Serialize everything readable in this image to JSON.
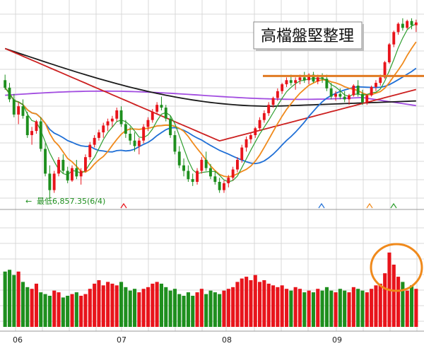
{
  "chart_data": {
    "type": "candlestick",
    "title": "高檔盤堅整理",
    "annotation_low": "最低6,857.35(6/4)",
    "x_ticks": [
      "06",
      "07",
      "08",
      "09"
    ],
    "colors": {
      "up": "#e8141b",
      "down": "#1e8f1e",
      "ma_green": "#2f9e2f",
      "ma_orange": "#f08a1c",
      "ma_blue": "#1f6fd6",
      "ma_red": "#cc2020",
      "ma_black": "#1a1a1a",
      "ma_purple": "#a24de0",
      "resistance": "#e07b23",
      "highlight_circle": "#f08a1c",
      "grid": "#d9d9d9"
    },
    "price_range": [
      6800,
      8200
    ],
    "ohlc": [
      [
        7720,
        7760,
        7650,
        7665
      ],
      [
        7665,
        7700,
        7560,
        7580
      ],
      [
        7580,
        7620,
        7450,
        7470
      ],
      [
        7470,
        7560,
        7400,
        7530
      ],
      [
        7530,
        7580,
        7440,
        7460
      ],
      [
        7460,
        7490,
        7300,
        7320
      ],
      [
        7320,
        7380,
        7250,
        7350
      ],
      [
        7350,
        7430,
        7330,
        7420
      ],
      [
        7420,
        7450,
        7200,
        7220
      ],
      [
        7220,
        7260,
        7020,
        7040
      ],
      [
        7040,
        7100,
        6857,
        6920
      ],
      [
        6920,
        7060,
        6900,
        7040
      ],
      [
        7040,
        7160,
        7020,
        7140
      ],
      [
        7140,
        7180,
        7040,
        7060
      ],
      [
        7060,
        7090,
        6970,
        6990
      ],
      [
        6990,
        7100,
        6980,
        7080
      ],
      [
        7080,
        7140,
        7000,
        7020
      ],
      [
        7020,
        7080,
        6960,
        7060
      ],
      [
        7060,
        7180,
        7050,
        7160
      ],
      [
        7160,
        7270,
        7140,
        7250
      ],
      [
        7250,
        7320,
        7230,
        7300
      ],
      [
        7300,
        7360,
        7280,
        7340
      ],
      [
        7340,
        7410,
        7300,
        7390
      ],
      [
        7390,
        7440,
        7350,
        7420
      ],
      [
        7420,
        7460,
        7380,
        7440
      ],
      [
        7440,
        7520,
        7420,
        7500
      ],
      [
        7500,
        7530,
        7380,
        7400
      ],
      [
        7400,
        7430,
        7300,
        7330
      ],
      [
        7330,
        7380,
        7250,
        7280
      ],
      [
        7280,
        7340,
        7200,
        7240
      ],
      [
        7240,
        7300,
        7180,
        7280
      ],
      [
        7280,
        7400,
        7260,
        7380
      ],
      [
        7380,
        7450,
        7350,
        7430
      ],
      [
        7430,
        7510,
        7410,
        7490
      ],
      [
        7490,
        7560,
        7470,
        7540
      ],
      [
        7540,
        7600,
        7500,
        7520
      ],
      [
        7520,
        7540,
        7420,
        7440
      ],
      [
        7440,
        7460,
        7300,
        7320
      ],
      [
        7320,
        7350,
        7180,
        7200
      ],
      [
        7200,
        7240,
        7080,
        7100
      ],
      [
        7100,
        7150,
        7020,
        7060
      ],
      [
        7060,
        7100,
        6980,
        7000
      ],
      [
        7000,
        7040,
        6950,
        6980
      ],
      [
        6980,
        7080,
        6960,
        7060
      ],
      [
        7060,
        7160,
        7040,
        7140
      ],
      [
        7140,
        7200,
        7060,
        7080
      ],
      [
        7080,
        7110,
        7000,
        7020
      ],
      [
        7020,
        7060,
        6960,
        6980
      ],
      [
        6980,
        7010,
        6900,
        6920
      ],
      [
        6920,
        6990,
        6900,
        6970
      ],
      [
        6970,
        7030,
        6940,
        7010
      ],
      [
        7010,
        7090,
        6990,
        7070
      ],
      [
        7070,
        7160,
        7050,
        7140
      ],
      [
        7140,
        7250,
        7120,
        7230
      ],
      [
        7230,
        7310,
        7200,
        7290
      ],
      [
        7290,
        7340,
        7260,
        7320
      ],
      [
        7320,
        7380,
        7300,
        7370
      ],
      [
        7370,
        7450,
        7350,
        7430
      ],
      [
        7430,
        7500,
        7410,
        7480
      ],
      [
        7480,
        7560,
        7460,
        7540
      ],
      [
        7540,
        7600,
        7520,
        7590
      ],
      [
        7590,
        7660,
        7570,
        7640
      ],
      [
        7640,
        7700,
        7620,
        7690
      ],
      [
        7690,
        7740,
        7670,
        7720
      ],
      [
        7720,
        7760,
        7680,
        7700
      ],
      [
        7700,
        7740,
        7650,
        7720
      ],
      [
        7720,
        7760,
        7690,
        7740
      ],
      [
        7740,
        7780,
        7700,
        7720
      ],
      [
        7720,
        7770,
        7690,
        7760
      ],
      [
        7760,
        7780,
        7700,
        7710
      ],
      [
        7710,
        7760,
        7690,
        7740
      ],
      [
        7740,
        7770,
        7700,
        7730
      ],
      [
        7730,
        7760,
        7640,
        7660
      ],
      [
        7660,
        7700,
        7580,
        7600
      ],
      [
        7600,
        7640,
        7570,
        7620
      ],
      [
        7620,
        7660,
        7580,
        7600
      ],
      [
        7600,
        7640,
        7560,
        7580
      ],
      [
        7580,
        7620,
        7540,
        7610
      ],
      [
        7610,
        7690,
        7600,
        7680
      ],
      [
        7680,
        7720,
        7600,
        7620
      ],
      [
        7620,
        7650,
        7540,
        7560
      ],
      [
        7560,
        7620,
        7540,
        7610
      ],
      [
        7610,
        7680,
        7600,
        7670
      ],
      [
        7670,
        7720,
        7640,
        7700
      ],
      [
        7700,
        7760,
        7680,
        7740
      ],
      [
        7740,
        7860,
        7730,
        7850
      ],
      [
        7850,
        7990,
        7840,
        7980
      ],
      [
        7980,
        8080,
        7960,
        8070
      ],
      [
        8070,
        8140,
        8050,
        8130
      ],
      [
        8130,
        8170,
        8080,
        8100
      ],
      [
        8100,
        8160,
        8090,
        8150
      ],
      [
        8150,
        8170,
        8090,
        8120
      ],
      [
        8120,
        8160,
        8070,
        8140
      ]
    ],
    "volume": [
      64,
      66,
      60,
      64,
      52,
      46,
      44,
      50,
      40,
      38,
      36,
      42,
      40,
      34,
      36,
      38,
      40,
      36,
      38,
      44,
      50,
      54,
      48,
      52,
      50,
      48,
      52,
      46,
      42,
      44,
      40,
      44,
      46,
      50,
      52,
      50,
      46,
      42,
      44,
      38,
      36,
      40,
      36,
      40,
      44,
      38,
      42,
      40,
      38,
      42,
      44,
      46,
      52,
      56,
      58,
      54,
      60,
      52,
      54,
      50,
      48,
      46,
      48,
      44,
      42,
      46,
      44,
      40,
      42,
      40,
      44,
      42,
      46,
      42,
      40,
      44,
      42,
      40,
      46,
      44,
      42,
      40,
      44,
      48,
      50,
      62,
      86,
      72,
      58,
      52,
      42,
      48,
      44
    ]
  }
}
